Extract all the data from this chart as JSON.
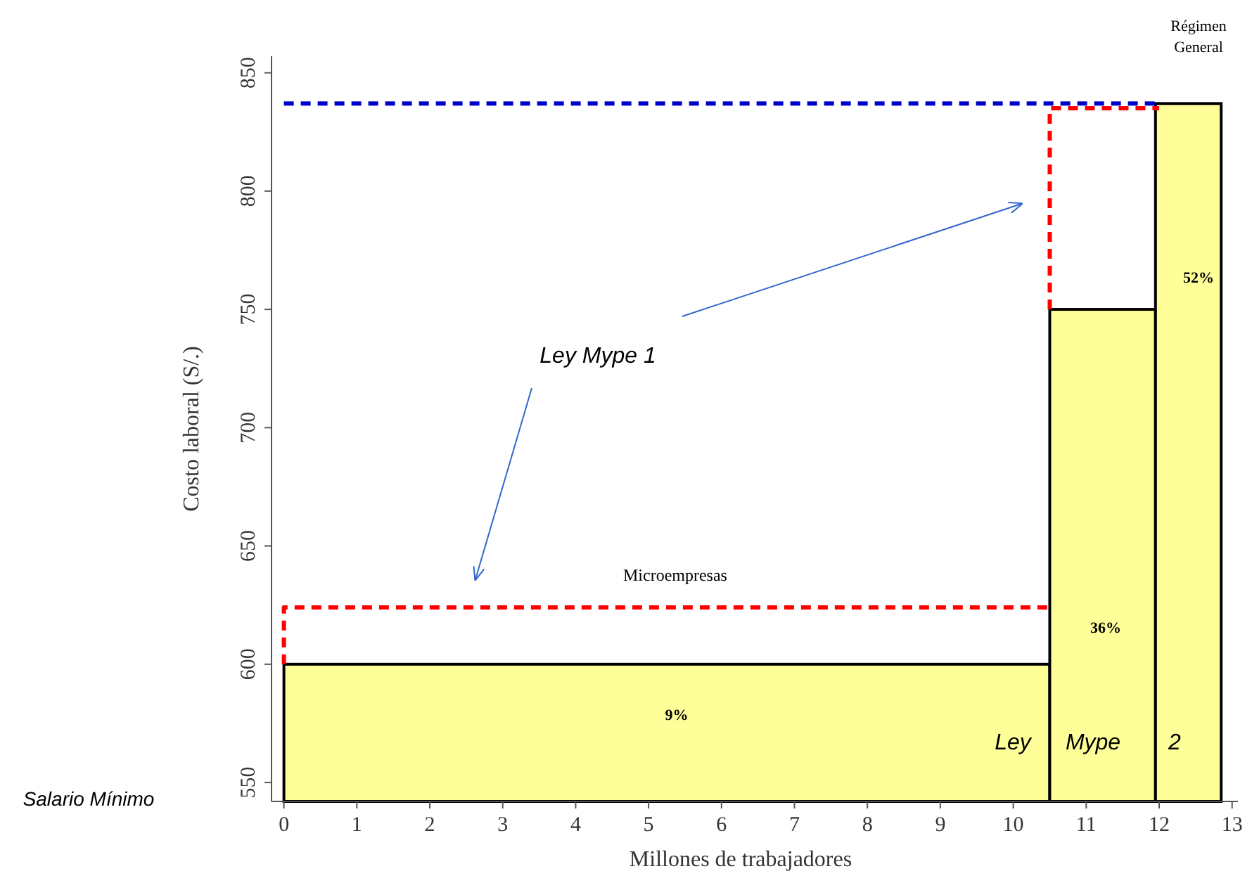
{
  "chart_data": {
    "type": "histogram",
    "xlabel": "Millones de trabajadores",
    "ylabel": "Costo laboral (S/.)",
    "bins": [
      0,
      10.5,
      11.95,
      12.85
    ],
    "values": [
      600,
      750,
      837
    ],
    "color": "#ffff99",
    "xlim": [
      -0.17,
      13.08
    ],
    "xticks": [
      0,
      1,
      2,
      3,
      4,
      5,
      6,
      7,
      8,
      9,
      10,
      11,
      12,
      13
    ],
    "ylim": [
      542,
      857
    ],
    "yticks": [
      550,
      600,
      650,
      700,
      750,
      800,
      850
    ],
    "series": [
      {
        "type": "line",
        "x": [
          0,
          0,
          10.5
        ],
        "values": [
          600,
          624,
          624
        ],
        "color": "#ff0000",
        "line_style": "dashed"
      },
      {
        "type": "line",
        "x": [
          10.5,
          10.5,
          12
        ],
        "values": [
          750,
          835,
          835
        ],
        "color": "#ff0000",
        "line_style": "dashed"
      },
      {
        "type": "line",
        "x": [
          0,
          12
        ],
        "values": [
          837,
          837
        ],
        "color": "#0000cc",
        "line_style": "dashed"
      }
    ],
    "annotations": [
      "9%",
      "36%",
      "52%",
      "Microempresas",
      "Régimen General",
      "Ley Mype 1",
      "Ley Mype 2",
      "Salario Mínimo"
    ]
  }
}
